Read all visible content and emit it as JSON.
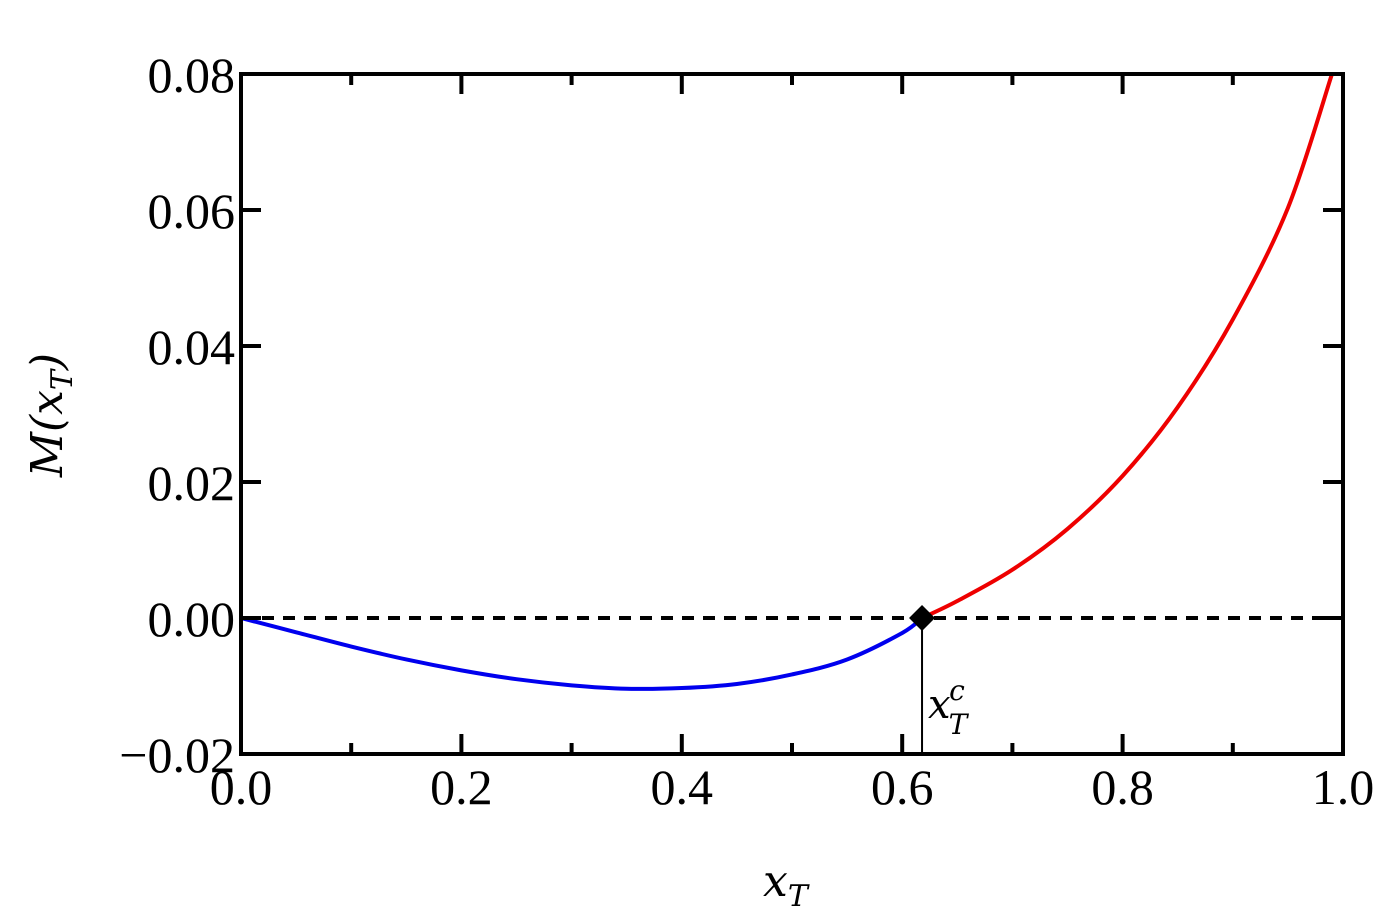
{
  "chart_data": {
    "type": "line",
    "title": "",
    "xlabel": {
      "main": "x",
      "sub": "T"
    },
    "ylabel": {
      "prefix": "M(",
      "var": "x",
      "sub": "T",
      "suffix": ")"
    },
    "xlim": [
      0.0,
      1.0
    ],
    "ylim": [
      -0.02,
      0.08
    ],
    "x_ticks": [
      0.0,
      0.2,
      0.4,
      0.6,
      0.8,
      1.0
    ],
    "x_tick_labels": [
      "0.0",
      "0.2",
      "0.4",
      "0.6",
      "0.8",
      "1.0"
    ],
    "y_ticks": [
      -0.02,
      0.0,
      0.02,
      0.04,
      0.06,
      0.08
    ],
    "y_tick_labels": [
      "−0.02",
      "0.00",
      "0.02",
      "0.04",
      "0.06",
      "0.08"
    ],
    "grid": false,
    "series": [
      {
        "color": "#0000ee",
        "x": [
          0.0,
          0.05,
          0.1,
          0.15,
          0.2,
          0.25,
          0.3,
          0.35,
          0.4,
          0.45,
          0.5,
          0.55,
          0.6,
          0.618
        ],
        "y": [
          0.0,
          -0.0021,
          -0.0042,
          -0.0061,
          -0.0077,
          -0.009,
          -0.0099,
          -0.0104,
          -0.0103,
          -0.0097,
          -0.0083,
          -0.0061,
          -0.0022,
          0.0
        ]
      },
      {
        "color": "#ee0000",
        "x": [
          0.618,
          0.65,
          0.7,
          0.75,
          0.8,
          0.85,
          0.9,
          0.95,
          0.99
        ],
        "y": [
          0.0,
          0.0025,
          0.0071,
          0.0131,
          0.0209,
          0.031,
          0.0439,
          0.0603,
          0.08
        ]
      }
    ],
    "reference_line": {
      "y": 0.0,
      "style": "dashed",
      "color": "#000000"
    },
    "marker": {
      "x": 0.618,
      "y": 0.0,
      "shape": "diamond",
      "color": "#000000"
    },
    "annotation": {
      "main": "x",
      "sub": "T",
      "sup": "c",
      "x": 0.618
    }
  }
}
